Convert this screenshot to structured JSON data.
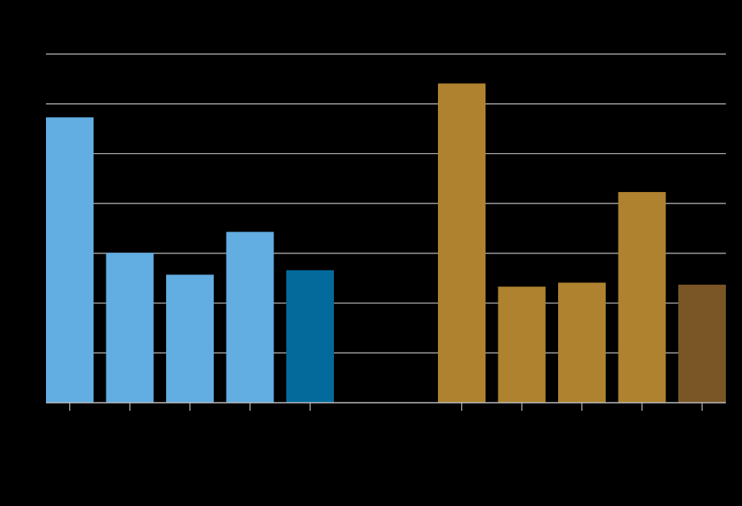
{
  "colors": {
    "background": "#000000",
    "grid": "#bdbdbd",
    "axis": "#bdbdbd",
    "left_light": "#62ade1",
    "left_dark": "#036a9b",
    "right_light": "#ae822f",
    "right_dark": "#7a5525"
  },
  "chart_data": {
    "type": "bar",
    "title": "",
    "xlabel": "",
    "ylabel": "",
    "ylim": [
      0,
      7
    ],
    "grid": true,
    "legend": "none",
    "tick_labels_visible": false,
    "groups": [
      {
        "name": "",
        "categories": [
          "",
          "",
          "",
          "",
          ""
        ],
        "values": [
          5.73,
          3.01,
          2.57,
          3.43,
          2.66
        ],
        "colors": [
          "#62ade1",
          "#62ade1",
          "#62ade1",
          "#62ade1",
          "#036a9b"
        ]
      },
      {
        "name": "",
        "categories": [
          "",
          "",
          "",
          "",
          ""
        ],
        "values": [
          6.41,
          2.33,
          2.41,
          4.23,
          2.37
        ],
        "colors": [
          "#ae822f",
          "#ae822f",
          "#ae822f",
          "#ae822f",
          "#7a5525"
        ]
      }
    ]
  }
}
